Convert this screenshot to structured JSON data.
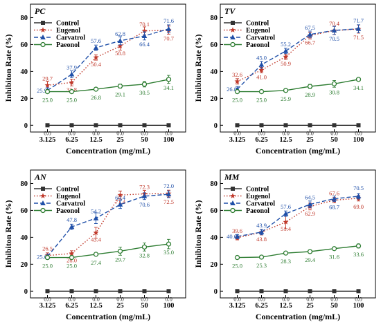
{
  "chart_data": [
    {
      "type": "line",
      "panel": "PC",
      "xlabel": "Concentration (mg/mL)",
      "ylabel": "Inhibiton Rate (%)",
      "categories": [
        "3.125",
        "6.25",
        "12.5",
        "25",
        "50",
        "100"
      ],
      "ylim": [
        0,
        80
      ],
      "yticks": [
        "0",
        "20",
        "40",
        "60",
        "80"
      ],
      "legend_position": "top-left",
      "series": [
        {
          "name": "Control",
          "color": "#333333",
          "marker": "square",
          "dash": "solid",
          "values": [
            0,
            0,
            0,
            0,
            0,
            0
          ],
          "labels": [
            "0.0",
            "0.0",
            "0.0",
            "0.0",
            "0.0",
            "0.0"
          ],
          "errors": [
            0,
            0,
            0,
            0,
            0,
            0
          ]
        },
        {
          "name": "Eugenol",
          "color": "#c0392b",
          "marker": "star",
          "dash": "dot",
          "values": [
            29.7,
            31.8,
            50.4,
            58.8,
            70.1,
            70.7
          ],
          "labels": [
            "29.7",
            "31.8",
            "50.4",
            "58.8",
            "70.1",
            "70.7"
          ],
          "errors": [
            3,
            2.5,
            2,
            3,
            3,
            3
          ]
        },
        {
          "name": "Carvatrol",
          "color": "#1f4fa8",
          "marker": "triangle",
          "dash": "dash",
          "values": [
            25.9,
            37.9,
            57.6,
            62.8,
            66.4,
            71.6
          ],
          "labels": [
            "25.9",
            "37.9",
            "57.6",
            "62.8",
            "66.4",
            "71.6"
          ],
          "errors": [
            2,
            2.5,
            2,
            3,
            3,
            3
          ]
        },
        {
          "name": "Paeonol",
          "color": "#2e7d32",
          "marker": "circle",
          "dash": "solid",
          "values": [
            25.0,
            25.0,
            26.8,
            29.1,
            30.5,
            34.1
          ],
          "labels": [
            "25.0",
            "25.0",
            "26.8",
            "29.1",
            "30.5",
            "34.1"
          ],
          "errors": [
            1,
            1,
            1,
            1.5,
            2,
            3
          ]
        }
      ]
    },
    {
      "type": "line",
      "panel": "TV",
      "xlabel": "Concentration (mg/mL)",
      "ylabel": "Inhibiton Rate (%)",
      "categories": [
        "3.125",
        "6.25",
        "12.5",
        "25",
        "50",
        "100"
      ],
      "ylim": [
        0,
        80
      ],
      "yticks": [
        "0",
        "20",
        "40",
        "60",
        "80"
      ],
      "legend_position": "top-left",
      "series": [
        {
          "name": "Control",
          "color": "#333333",
          "marker": "square",
          "dash": "solid",
          "values": [
            0,
            0,
            0,
            0,
            0,
            0
          ],
          "labels": [
            "0.0",
            "0.0",
            "0.0",
            "0.0",
            "0.0",
            "0.0"
          ],
          "errors": [
            0,
            0,
            0,
            0,
            0,
            0
          ]
        },
        {
          "name": "Eugenol",
          "color": "#c0392b",
          "marker": "star",
          "dash": "dot",
          "values": [
            32.6,
            41.0,
            50.9,
            66.7,
            70.4,
            71.5
          ],
          "labels": [
            "32.6",
            "41.0",
            "50.9",
            "66.7",
            "70.4",
            "71.5"
          ],
          "errors": [
            2,
            2,
            2,
            2.5,
            3,
            3
          ]
        },
        {
          "name": "Carvatrol",
          "color": "#1f4fa8",
          "marker": "triangle",
          "dash": "dash",
          "values": [
            26.8,
            45.0,
            55.2,
            67.5,
            70.5,
            71.7
          ],
          "labels": [
            "26.8",
            "45.0",
            "55.2",
            "67.5",
            "70.5",
            "71.7"
          ],
          "errors": [
            2,
            2.5,
            2,
            2.5,
            3,
            3
          ]
        },
        {
          "name": "Paeonol",
          "color": "#2e7d32",
          "marker": "circle",
          "dash": "solid",
          "values": [
            25.0,
            25.0,
            25.9,
            28.9,
            30.8,
            34.1
          ],
          "labels": [
            "25.0",
            "25.0",
            "25.9",
            "28.9",
            "30.8",
            "34.1"
          ],
          "errors": [
            1,
            1,
            1,
            1.5,
            2.5,
            1
          ]
        }
      ]
    },
    {
      "type": "line",
      "panel": "AN",
      "xlabel": "Concentration (mg/mL)",
      "ylabel": "Inhibiton Rate (%)",
      "categories": [
        "3.125",
        "6.25",
        "12.5",
        "25",
        "50",
        "100"
      ],
      "ylim": [
        0,
        80
      ],
      "yticks": [
        "0",
        "20",
        "40",
        "60",
        "80"
      ],
      "legend_position": "top-left",
      "series": [
        {
          "name": "Control",
          "color": "#333333",
          "marker": "square",
          "dash": "solid",
          "values": [
            0,
            0,
            0,
            0,
            0,
            0
          ],
          "labels": [
            "0.0",
            "0.0",
            "0.0",
            "0.0",
            "0.0",
            "0.0"
          ],
          "errors": [
            0,
            0,
            0,
            0,
            0,
            0
          ]
        },
        {
          "name": "Eugenol",
          "color": "#c0392b",
          "marker": "star",
          "dash": "dot",
          "values": [
            26.5,
            28.0,
            43.4,
            71.4,
            72.3,
            72.5
          ],
          "labels": [
            "26.5",
            "28.0",
            "43.4",
            "71.4",
            "72.3",
            "72.5"
          ],
          "errors": [
            2,
            2,
            4,
            3,
            2.5,
            2.5
          ]
        },
        {
          "name": "Carvatrol",
          "color": "#1f4fa8",
          "marker": "triangle",
          "dash": "dash",
          "values": [
            25.6,
            47.8,
            54.2,
            64.4,
            70.6,
            72.0
          ],
          "labels": [
            "25.6",
            "47.8",
            "54.2",
            "64.4",
            "70.6",
            "72.0"
          ],
          "errors": [
            2,
            2,
            4,
            3,
            2.5,
            2.5
          ]
        },
        {
          "name": "Paeonol",
          "color": "#2e7d32",
          "marker": "circle",
          "dash": "solid",
          "values": [
            25.0,
            25.0,
            27.4,
            29.7,
            32.8,
            35.0
          ],
          "labels": [
            "25.0",
            "25.0",
            "27.4",
            "29.7",
            "32.8",
            "35.0"
          ],
          "errors": [
            1,
            1,
            1,
            3,
            3,
            3.5
          ]
        }
      ]
    },
    {
      "type": "line",
      "panel": "MM",
      "xlabel": "Concentration (mg/mL)",
      "ylabel": "Inhibiton Rate (%)",
      "categories": [
        "3.125",
        "6.25",
        "12.5",
        "25",
        "50",
        "100"
      ],
      "ylim": [
        0,
        80
      ],
      "yticks": [
        "0",
        "20",
        "40",
        "60",
        "80"
      ],
      "legend_position": "top-left",
      "series": [
        {
          "name": "Control",
          "color": "#333333",
          "marker": "square",
          "dash": "solid",
          "values": [
            0,
            0,
            0,
            0,
            0,
            0
          ],
          "labels": [
            "0.0",
            "0.0",
            "0.0",
            "0.0",
            "0.0",
            "0.0"
          ],
          "errors": [
            0,
            0,
            0,
            0,
            0,
            0
          ]
        },
        {
          "name": "Eugenol",
          "color": "#c0392b",
          "marker": "star",
          "dash": "dot",
          "values": [
            39.6,
            43.8,
            51.4,
            62.9,
            67.6,
            69.0
          ],
          "labels": [
            "39.6",
            "43.8",
            "51.4",
            "62.9",
            "67.6",
            "69.0"
          ],
          "errors": [
            1.5,
            2,
            5,
            2.5,
            2,
            2
          ]
        },
        {
          "name": "Carvatrol",
          "color": "#1f4fa8",
          "marker": "triangle",
          "dash": "dash",
          "values": [
            40.6,
            43.9,
            57.6,
            64.5,
            68.7,
            70.5
          ],
          "labels": [
            "40.6",
            "43.9",
            "57.6",
            "64.5",
            "68.7",
            "70.5"
          ],
          "errors": [
            1.5,
            2,
            2,
            2.5,
            2,
            2
          ]
        },
        {
          "name": "Paeonol",
          "color": "#2e7d32",
          "marker": "circle",
          "dash": "solid",
          "values": [
            25.0,
            25.3,
            28.3,
            29.4,
            31.6,
            33.6
          ],
          "labels": [
            "25.0",
            "25.3",
            "28.3",
            "29.4",
            "31.6",
            "33.6"
          ],
          "errors": [
            1,
            1,
            1,
            1,
            1,
            1.5
          ]
        }
      ]
    }
  ]
}
